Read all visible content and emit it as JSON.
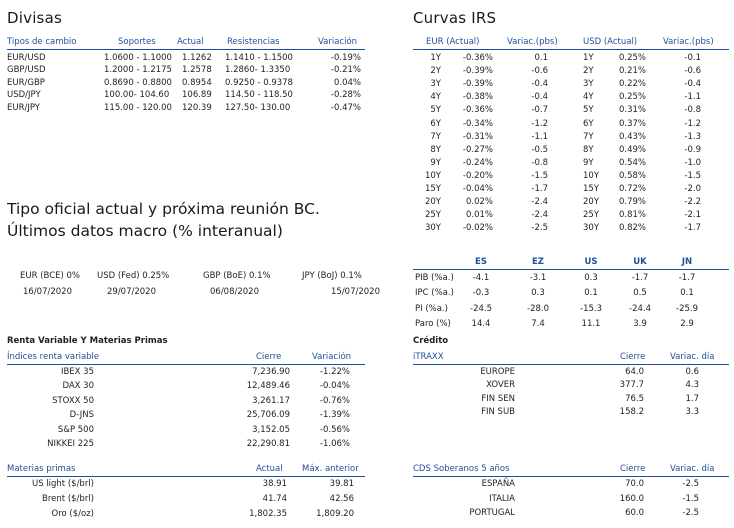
{
  "divisas": {
    "title": "Divisas",
    "headers": {
      "pair": "Tipos de cambio",
      "soportes": "Soportes",
      "actual": "Actual",
      "resistencias": "Resistencias",
      "variacion": "Variación"
    },
    "rows": [
      {
        "pair": "EUR/USD",
        "soportes": "1.0600 - 1.1000",
        "actual": "1.1262",
        "resistencias": "1.1410 - 1.1500",
        "variacion": "-0.19%"
      },
      {
        "pair": "GBP/USD",
        "soportes": "1.2000 - 1.2175",
        "actual": "1.2578",
        "resistencias": "1.2860- 1.3350",
        "variacion": "-0.21%"
      },
      {
        "pair": "EUR/GBP",
        "soportes": "0.8690 - 0.8800",
        "actual": "0.8954",
        "resistencias": "0.9250 - 0.9378",
        "variacion": "0.04%"
      },
      {
        "pair": "USD/JPY",
        "soportes": "100.00- 104.60",
        "actual": "106.89",
        "resistencias": "114.50 - 118.50",
        "variacion": "-0.28%"
      },
      {
        "pair": "EUR/JPY",
        "soportes": "115.00 - 120.00",
        "actual": "120.39",
        "resistencias": "127.50- 130.00",
        "variacion": "-0.47%"
      }
    ]
  },
  "curvas": {
    "title": "Curvas IRS",
    "headers": {
      "eur": "EUR (Actual)",
      "eur_var": "Variac.(pbs)",
      "usd": "USD (Actual)",
      "usd_var": "Variac.(pbs)"
    },
    "rows": [
      {
        "t1": "1Y",
        "eur": "-0.36%",
        "ev": "0.1",
        "t2": "1Y",
        "usd": "0.25%",
        "uv": "-0.1"
      },
      {
        "t1": "2Y",
        "eur": "-0.39%",
        "ev": "-0.6",
        "t2": "2Y",
        "usd": "0.21%",
        "uv": "-0.6"
      },
      {
        "t1": "3Y",
        "eur": "-0.39%",
        "ev": "-0.4",
        "t2": "3Y",
        "usd": "0.22%",
        "uv": "-0.4"
      },
      {
        "t1": "4Y",
        "eur": "-0.38%",
        "ev": "-0.4",
        "t2": "4Y",
        "usd": "0.25%",
        "uv": "-1.1"
      },
      {
        "t1": "5Y",
        "eur": "-0.36%",
        "ev": "-0.7",
        "t2": "5Y",
        "usd": "0.31%",
        "uv": "-0.8"
      },
      {
        "t1": "6Y",
        "eur": "-0.34%",
        "ev": "-1.2",
        "t2": "6Y",
        "usd": "0.37%",
        "uv": "-1.2"
      },
      {
        "t1": "7Y",
        "eur": "-0.31%",
        "ev": "-1.1",
        "t2": "7Y",
        "usd": "0.43%",
        "uv": "-1.3"
      },
      {
        "t1": "8Y",
        "eur": "-0.27%",
        "ev": "-0.5",
        "t2": "8Y",
        "usd": "0.49%",
        "uv": "-0.9"
      },
      {
        "t1": "9Y",
        "eur": "-0.24%",
        "ev": "-0.8",
        "t2": "9Y",
        "usd": "0.54%",
        "uv": "-1.0"
      },
      {
        "t1": "10Y",
        "eur": "-0.20%",
        "ev": "-1.5",
        "t2": "10Y",
        "usd": "0.58%",
        "uv": "-1.5"
      },
      {
        "t1": "15Y",
        "eur": "-0.04%",
        "ev": "-1.7",
        "t2": "15Y",
        "usd": "0.72%",
        "uv": "-2.0"
      },
      {
        "t1": "20Y",
        "eur": "0.02%",
        "ev": "-2.4",
        "t2": "20Y",
        "usd": "0.79%",
        "uv": "-2.2"
      },
      {
        "t1": "25Y",
        "eur": "0.01%",
        "ev": "-2.4",
        "t2": "25Y",
        "usd": "0.81%",
        "uv": "-2.1"
      },
      {
        "t1": "30Y",
        "eur": "-0.02%",
        "ev": "-2.5",
        "t2": "30Y",
        "usd": "0.82%",
        "uv": "-1.7"
      }
    ]
  },
  "tipo_oficial": {
    "title1": "Tipo oficial actual y próxima reunión BC.",
    "title2": "Últimos datos macro (% interanual)",
    "banks": [
      {
        "label": "EUR (BCE) 0%",
        "date": "16/07/2020"
      },
      {
        "label": "USD (Fed) 0.25%",
        "date": "29/07/2020"
      },
      {
        "label": "GBP (BoE) 0.1%",
        "date": "06/08/2020"
      },
      {
        "label": "JPY (BoJ) 0.1%",
        "date": "15/07/2020"
      }
    ]
  },
  "macro": {
    "headers": [
      "ES",
      "EZ",
      "US",
      "UK",
      "JN"
    ],
    "rows": [
      {
        "label": "PIB (%a.)",
        "values": [
          "-4.1",
          "-3.1",
          "0.3",
          "-1.7",
          "-1.7"
        ]
      },
      {
        "label": "IPC (%a.)",
        "values": [
          "-0.3",
          "0.3",
          "0.1",
          "0.5",
          "0.1"
        ]
      },
      {
        "label": "PI (%a.)",
        "values": [
          "-24.5",
          "-28.0",
          "-15.3",
          "-24.4",
          "-25.9"
        ]
      },
      {
        "label": "Paro (%)",
        "values": [
          "14.4",
          "7.4",
          "11.1",
          "3.9",
          "2.9"
        ]
      }
    ]
  },
  "renta": {
    "title": "Renta Variable Y Materias Primas",
    "headers": {
      "name": "Índices renta variable",
      "cierre": "Cierre",
      "variacion": "Variación"
    },
    "rows": [
      {
        "name": "IBEX 35",
        "cierre": "7,236.90",
        "variacion": "-1.22%"
      },
      {
        "name": "DAX 30",
        "cierre": "12,489.46",
        "variacion": "-0.04%"
      },
      {
        "name": "STOXX 50",
        "cierre": "3,261.17",
        "variacion": "-0.76%"
      },
      {
        "name": "D-JNS",
        "cierre": "25,706.09",
        "variacion": "-1.39%"
      },
      {
        "name": "S&P 500",
        "cierre": "3,152.05",
        "variacion": "-0.56%"
      },
      {
        "name": "NIKKEI 225",
        "cierre": "22,290.81",
        "variacion": "-1.06%"
      }
    ]
  },
  "materias": {
    "headers": {
      "name": "Materias primas",
      "actual": "Actual",
      "max": "Máx. anterior"
    },
    "rows": [
      {
        "name": "US light ($/brl)",
        "actual": "38.91",
        "max": "39.81"
      },
      {
        "name": "Brent ($/brl)",
        "actual": "41.74",
        "max": "42.56"
      },
      {
        "name": "Oro ($/oz)",
        "actual": "1,802.35",
        "max": "1,809.20"
      }
    ]
  },
  "credito": {
    "title": "Crédito",
    "headers": {
      "name": "iTRAXX",
      "cierre": "Cierre",
      "variac": "Variac. día"
    },
    "rows": [
      {
        "name": "EUROPE",
        "cierre": "64.0",
        "variac": "0.6"
      },
      {
        "name": "XOVER",
        "cierre": "377.7",
        "variac": "4.3"
      },
      {
        "name": "FIN SEN",
        "cierre": "76.5",
        "variac": "1.7"
      },
      {
        "name": "FIN SUB",
        "cierre": "158.2",
        "variac": "3.3"
      }
    ]
  },
  "cds": {
    "headers": {
      "name": "CDS Soberanos 5 años",
      "cierre": "Cierre",
      "variac": "Variac. día"
    },
    "rows": [
      {
        "name": "ESPAÑA",
        "cierre": "70.0",
        "variac": "-2.5"
      },
      {
        "name": "ITALIA",
        "cierre": "160.0",
        "variac": "-1.5"
      },
      {
        "name": "PORTUGAL",
        "cierre": "60.0",
        "variac": "-2.5"
      }
    ]
  }
}
